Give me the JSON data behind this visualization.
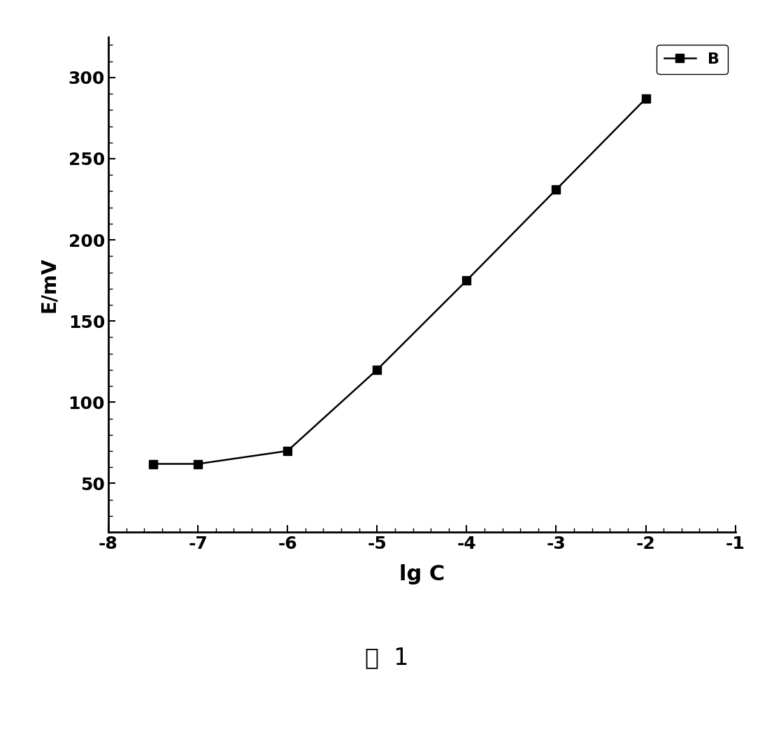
{
  "x": [
    -7.5,
    -7.0,
    -6.0,
    -5.0,
    -4.0,
    -3.0,
    -2.0
  ],
  "y": [
    62,
    62,
    70,
    120,
    175,
    231,
    287
  ],
  "xlim": [
    -8,
    -1
  ],
  "ylim": [
    20,
    325
  ],
  "xticks": [
    -8,
    -7,
    -6,
    -5,
    -4,
    -3,
    -2,
    -1
  ],
  "yticks": [
    50,
    100,
    150,
    200,
    250,
    300
  ],
  "xlabel": "lg C",
  "ylabel": "E/mV",
  "legend_label": "B",
  "caption": "图  1",
  "line_color": "#000000",
  "marker": "s",
  "marker_color": "#000000",
  "marker_size": 9,
  "linewidth": 1.8,
  "background_color": "#ffffff",
  "xlabel_fontsize": 22,
  "ylabel_fontsize": 20,
  "tick_fontsize": 18,
  "legend_fontsize": 16,
  "caption_fontsize": 24,
  "spine_linewidth": 2.0
}
